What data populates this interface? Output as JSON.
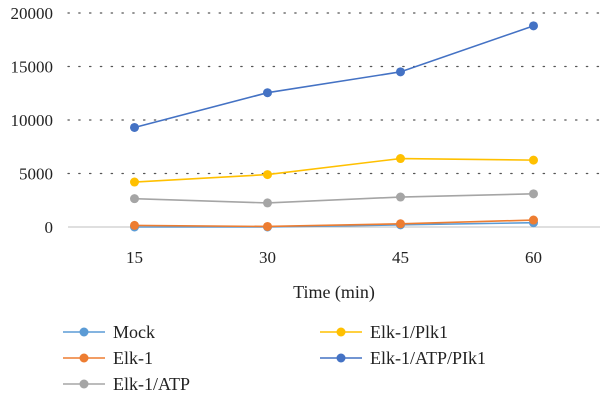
{
  "chart_data": {
    "type": "line",
    "title": "",
    "xlabel": "Time (min)",
    "ylabel": "",
    "categories": [
      "15",
      "30",
      "45",
      "60"
    ],
    "ylim": [
      0,
      20000
    ],
    "yticks": [
      0,
      5000,
      10000,
      15000,
      20000
    ],
    "grid": "horizontal dotted",
    "legend_position": "bottom",
    "series": [
      {
        "name": "Mock",
        "color": "#5b9bd5",
        "values": [
          0,
          0,
          200,
          400
        ]
      },
      {
        "name": "Elk-1",
        "color": "#ed7d31",
        "values": [
          150,
          50,
          300,
          650
        ]
      },
      {
        "name": "Elk-1/ATP",
        "color": "#a5a5a5",
        "values": [
          2650,
          2250,
          2800,
          3100
        ]
      },
      {
        "name": "Elk-1/Plk1",
        "color": "#ffc000",
        "values": [
          4200,
          4900,
          6400,
          6250
        ]
      },
      {
        "name": "Elk-1/ATP/PIk1",
        "color": "#4472c4",
        "values": [
          9300,
          12550,
          14500,
          18800
        ]
      }
    ]
  }
}
